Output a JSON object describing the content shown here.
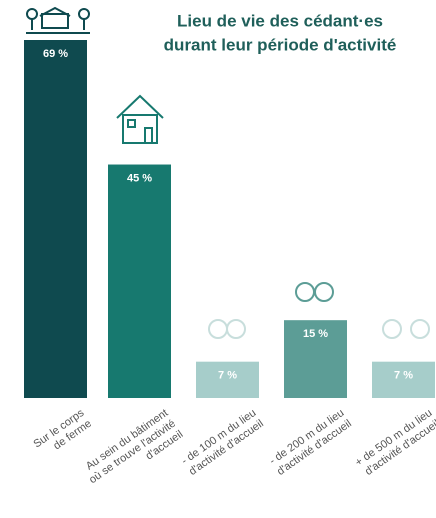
{
  "chart_data": {
    "type": "bar",
    "title": [
      "Lieu de vie des cédant·es",
      "durant leur période d'activité"
    ],
    "categories": [
      [
        "Sur le corps",
        "de ferme"
      ],
      [
        "Au sein du bâtiment",
        "où se trouve l'activité",
        "d'accueil"
      ],
      [
        "- de 100 m du lieu",
        "d'activité d'accueil"
      ],
      [
        "- de 200 m du lieu",
        "d'activité d'accueil"
      ],
      [
        "+ de 500 m du lieu",
        "d'activité d'accueil"
      ]
    ],
    "values": [
      69,
      45,
      7,
      15,
      7
    ],
    "value_labels": [
      "69 %",
      "45 %",
      "7 %",
      "15 %",
      "7 %"
    ],
    "colors": [
      "#0f4a4f",
      "#17796f",
      "#a6cdca",
      "#5c9d96",
      "#a6cdca"
    ]
  }
}
